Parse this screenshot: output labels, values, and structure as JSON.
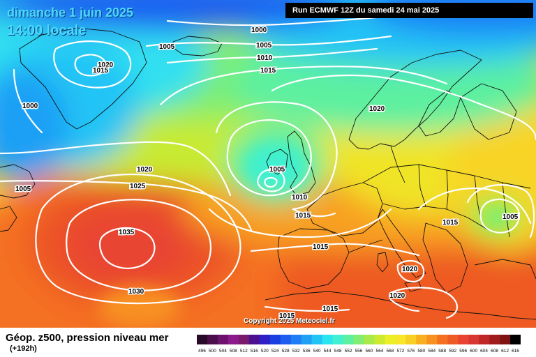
{
  "date_label": "dimanche 1 juin 2025",
  "time_label": "14:00 locale",
  "run_label": "Run ECMWF 12Z du samedi 24 mai 2025",
  "field_label": "Géop. z500, pression niveau mer",
  "horizon_label": "(+192h)",
  "copyright": "Copyright 2025 Meteociel.fr",
  "colorbar": {
    "labels": [
      "496",
      "500",
      "504",
      "508",
      "512",
      "516",
      "520",
      "524",
      "528",
      "532",
      "536",
      "540",
      "544",
      "548",
      "552",
      "556",
      "560",
      "564",
      "568",
      "572",
      "576",
      "580",
      "584",
      "588",
      "592",
      "596",
      "600",
      "604",
      "608",
      "612",
      "616"
    ],
    "colors": [
      "#2a0a2a",
      "#4b0d4b",
      "#6e116e",
      "#8c1a8c",
      "#7a1a6a",
      "#4a1090",
      "#2f1fc8",
      "#1a3fe0",
      "#1e5ef0",
      "#1f7ef5",
      "#1fa0f5",
      "#22c4f5",
      "#2ae4f0",
      "#40f0d0",
      "#5cf0a0",
      "#80ee70",
      "#a8ea4a",
      "#ccea30",
      "#ecee28",
      "#f8e628",
      "#f8cf24",
      "#f8b020",
      "#f89020",
      "#f47020",
      "#ee5a24",
      "#e84430",
      "#d83630",
      "#c02828",
      "#a01c1c",
      "#801212",
      "#000000"
    ]
  },
  "isobar_labels": [
    {
      "text": "1000"
    },
    {
      "text": "1005"
    },
    {
      "text": "1010"
    },
    {
      "text": "1015"
    },
    {
      "text": "1005"
    },
    {
      "text": "1020"
    },
    {
      "text": "1015"
    },
    {
      "text": "1000"
    },
    {
      "text": "1020"
    },
    {
      "text": "1005"
    },
    {
      "text": "1020"
    },
    {
      "text": "1025"
    },
    {
      "text": "1005"
    },
    {
      "text": "1010"
    },
    {
      "text": "1015"
    },
    {
      "text": "1035"
    },
    {
      "text": "1015"
    },
    {
      "text": "1015"
    },
    {
      "text": "1005"
    },
    {
      "text": "1030"
    },
    {
      "text": "1020"
    },
    {
      "text": "1020"
    },
    {
      "text": "1015"
    },
    {
      "text": "1015"
    }
  ]
}
